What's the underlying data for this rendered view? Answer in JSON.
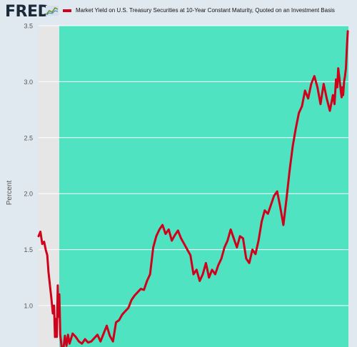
{
  "header": {
    "logo_text": "FRED",
    "legend_label": "Market Yield on U.S. Treasury Securities at 10-Year Constant Maturity, Quoted on an Investment Basis"
  },
  "colors": {
    "background": "#e1e9f0",
    "shaded_region": "#50e3c2",
    "recession_band": "#e6e6e6",
    "series": "#d0021b",
    "grid": "#ffffff",
    "tick_text": "#555555"
  },
  "chart_data": {
    "type": "line",
    "xlabel": "",
    "ylabel": "Percent",
    "ylim": [
      0.63,
      3.5
    ],
    "yticks": [
      "1.0",
      "1.5",
      "2.0",
      "2.5",
      "3.0",
      "3.5"
    ],
    "grid": true,
    "series": [
      {
        "name": "Market Yield on U.S. Treasury Securities at 10-Year Constant Maturity, Quoted on an Investment Basis",
        "x": [
          0,
          0.6,
          1.2,
          1.8,
          2.3,
          2.8,
          3.2,
          3.6,
          4.2,
          4.6,
          5,
          5.3,
          5.6,
          5.9,
          6.2,
          6.4,
          6.7,
          7,
          7.5,
          8,
          8.5,
          9,
          9.5,
          10,
          11,
          12,
          13,
          14,
          15,
          16,
          17,
          18,
          19,
          20,
          21,
          22,
          23,
          24,
          25,
          26,
          27,
          28,
          29,
          30,
          31,
          32,
          33,
          34,
          35,
          36,
          37,
          38,
          39,
          40,
          41,
          42,
          43,
          44,
          45,
          46,
          47,
          48,
          49,
          50,
          51,
          52,
          53,
          54,
          55,
          56,
          57,
          58,
          59,
          60,
          61,
          62,
          63,
          64,
          65,
          66,
          67,
          68,
          69,
          70,
          71,
          72,
          73,
          74,
          75,
          76,
          77,
          78,
          79,
          80,
          81,
          82,
          83,
          84,
          85,
          86,
          87,
          88,
          89,
          90,
          91,
          92,
          93,
          94,
          95,
          95.5,
          96,
          96.4,
          96.7,
          97,
          97.3,
          97.6,
          97.8,
          98,
          98.3,
          98.6,
          98.9,
          99.2,
          99.5,
          99.8
        ],
        "values": [
          1.62,
          1.66,
          1.55,
          1.57,
          1.5,
          1.45,
          1.3,
          1.2,
          1.05,
          0.93,
          1.0,
          0.72,
          0.88,
          0.72,
          1.18,
          0.9,
          1.1,
          0.74,
          0.62,
          0.6,
          0.73,
          0.64,
          0.74,
          0.66,
          0.75,
          0.72,
          0.68,
          0.66,
          0.7,
          0.67,
          0.68,
          0.71,
          0.74,
          0.68,
          0.75,
          0.82,
          0.73,
          0.68,
          0.85,
          0.87,
          0.92,
          0.95,
          0.98,
          1.05,
          1.09,
          1.12,
          1.15,
          1.14,
          1.22,
          1.28,
          1.52,
          1.62,
          1.68,
          1.72,
          1.64,
          1.68,
          1.58,
          1.63,
          1.67,
          1.6,
          1.55,
          1.5,
          1.45,
          1.28,
          1.32,
          1.22,
          1.28,
          1.38,
          1.25,
          1.32,
          1.28,
          1.36,
          1.42,
          1.52,
          1.58,
          1.68,
          1.6,
          1.52,
          1.62,
          1.6,
          1.42,
          1.38,
          1.5,
          1.46,
          1.58,
          1.75,
          1.85,
          1.82,
          1.9,
          1.98,
          2.02,
          1.88,
          1.72,
          1.95,
          2.2,
          2.42,
          2.58,
          2.72,
          2.78,
          2.92,
          2.85,
          2.98,
          3.05,
          2.95,
          2.8,
          2.98,
          2.85,
          2.74,
          2.88,
          2.8,
          3.02,
          2.95,
          3.12,
          3.05,
          2.98,
          2.9,
          2.86,
          2.95,
          2.88,
          3.0,
          3.05,
          3.12,
          3.3,
          3.45
        ]
      }
    ]
  }
}
